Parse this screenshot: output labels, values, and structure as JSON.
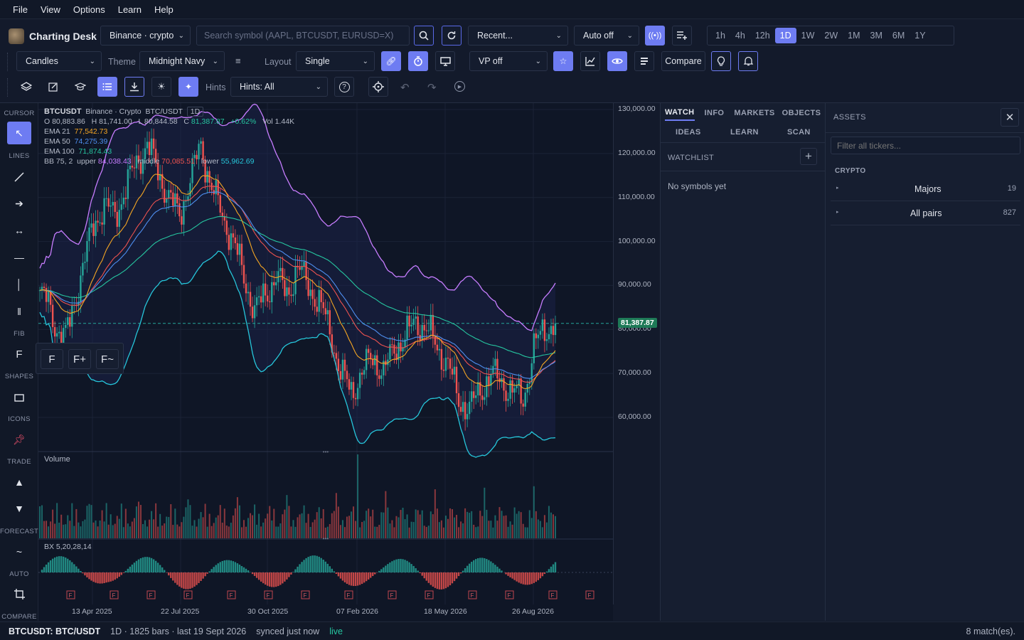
{
  "menu": [
    "File",
    "View",
    "Options",
    "Learn",
    "Help"
  ],
  "app": {
    "title": "Charting Desk"
  },
  "toolbar1": {
    "exchange": "Binance · crypto",
    "search_placeholder": "Search symbol (AAPL, BTCUSDT, EURUSD=X)",
    "recent": "Recent...",
    "autoscale": "Auto off",
    "timeframes": [
      "1h",
      "4h",
      "12h",
      "1D",
      "1W",
      "2W",
      "1M",
      "3M",
      "6M",
      "1Y"
    ],
    "active_tf": "1D"
  },
  "toolbar2": {
    "chart_type": "Candles",
    "theme_label": "Theme",
    "theme": "Midnight Navy",
    "layout_label": "Layout",
    "layout": "Single",
    "vp": "VP off",
    "compare": "Compare"
  },
  "toolbar3": {
    "hints_label": "Hints",
    "hints": "Hints: All"
  },
  "left_tools": {
    "sections": [
      "CURSOR",
      "LINES",
      "FIB",
      "SHAPES",
      "ICONS",
      "TRADE",
      "FORECAST",
      "AUTO",
      "COMPARE"
    ],
    "fib_buttons": [
      "F",
      "F+",
      "F~"
    ]
  },
  "chart": {
    "symbol": "BTCUSDT",
    "exchange": "Binance · Crypto",
    "pair": "BTC/USDT",
    "interval": "1D",
    "ohlc": {
      "o": "O 80,883.86",
      "h": "H 81,741.00",
      "l": "L 80,844.58",
      "c_label": "C",
      "c": "81,387.87",
      "chg": "+0.62%",
      "vol": "Vol 1.44K"
    },
    "ema": [
      {
        "label": "EMA 21",
        "value": "77,542.73",
        "color": "#f5a623"
      },
      {
        "label": "EMA 50",
        "value": "74,275.39",
        "color": "#4f8ff0"
      },
      {
        "label": "EMA 100",
        "value": "71,874.43",
        "color": "#26c6a0"
      }
    ],
    "bb": {
      "label": "BB 75, 2",
      "upper_label": "upper",
      "upper": "84,038.43",
      "middle_label": "middle",
      "middle": "70,085.51",
      "lower_label": "lower",
      "lower": "55,962.69"
    },
    "last_price": "81,387.87",
    "volume_label": "Volume",
    "osc_label": "BX 5,20,28,14",
    "f_marker": "F",
    "xticks": [
      "13 Apr 2025",
      "22 Jul 2025",
      "30 Oct 2025",
      "07 Feb 2026",
      "18 May 2026",
      "26 Aug 2026"
    ]
  },
  "chart_data": {
    "type": "candlestick",
    "y_ticks": [
      130000,
      120000,
      110000,
      100000,
      90000,
      80000,
      70000,
      60000
    ],
    "ylim": [
      56000,
      131000
    ],
    "x_ticks": [
      "13 Apr 2025",
      "22 Jul 2025",
      "30 Oct 2025",
      "07 Feb 2026",
      "18 May 2026",
      "26 Aug 2026"
    ],
    "close_path": [
      [
        0,
        88000
      ],
      [
        4,
        86000
      ],
      [
        8,
        80000
      ],
      [
        12,
        78000
      ],
      [
        16,
        86000
      ],
      [
        20,
        94000
      ],
      [
        25,
        104000
      ],
      [
        30,
        108000
      ],
      [
        35,
        106000
      ],
      [
        40,
        112000
      ],
      [
        45,
        118000
      ],
      [
        50,
        122000
      ],
      [
        55,
        116000
      ],
      [
        60,
        110000
      ],
      [
        65,
        106000
      ],
      [
        70,
        114000
      ],
      [
        75,
        122000
      ],
      [
        80,
        112000
      ],
      [
        85,
        106000
      ],
      [
        90,
        100000
      ],
      [
        95,
        92000
      ],
      [
        100,
        84000
      ],
      [
        105,
        88000
      ],
      [
        110,
        92000
      ],
      [
        115,
        88000
      ],
      [
        120,
        94000
      ],
      [
        125,
        90000
      ],
      [
        130,
        86000
      ],
      [
        135,
        80000
      ],
      [
        140,
        70000
      ],
      [
        145,
        66000
      ],
      [
        150,
        70000
      ],
      [
        155,
        74000
      ],
      [
        160,
        70000
      ],
      [
        165,
        76000
      ],
      [
        170,
        78000
      ],
      [
        175,
        82000
      ],
      [
        180,
        80000
      ],
      [
        185,
        76000
      ],
      [
        190,
        72000
      ],
      [
        195,
        64000
      ],
      [
        200,
        62000
      ],
      [
        205,
        66000
      ],
      [
        210,
        70000
      ],
      [
        215,
        68000
      ],
      [
        220,
        66000
      ],
      [
        225,
        64000
      ],
      [
        230,
        76000
      ],
      [
        235,
        80000
      ],
      [
        240,
        81388
      ]
    ],
    "last": 81387.87
  },
  "watch": {
    "tabs": [
      "WATCH",
      "INFO",
      "MARKETS",
      "OBJECTS"
    ],
    "subtabs": [
      "IDEAS",
      "LEARN",
      "SCAN"
    ],
    "list_title": "WATCHLIST",
    "empty": "No symbols yet"
  },
  "assets": {
    "title": "ASSETS",
    "filter_placeholder": "Filter all tickers...",
    "section": "CRYPTO",
    "rows": [
      {
        "name": "Majors",
        "count": "19"
      },
      {
        "name": "All pairs",
        "count": "827"
      }
    ]
  },
  "status": {
    "symbol": "BTCUSDT: BTC/USDT",
    "info": "1D · 1825 bars · last 19 Sept 2026",
    "sync": "synced just now",
    "live": "live",
    "matches": "8 match(es)."
  }
}
